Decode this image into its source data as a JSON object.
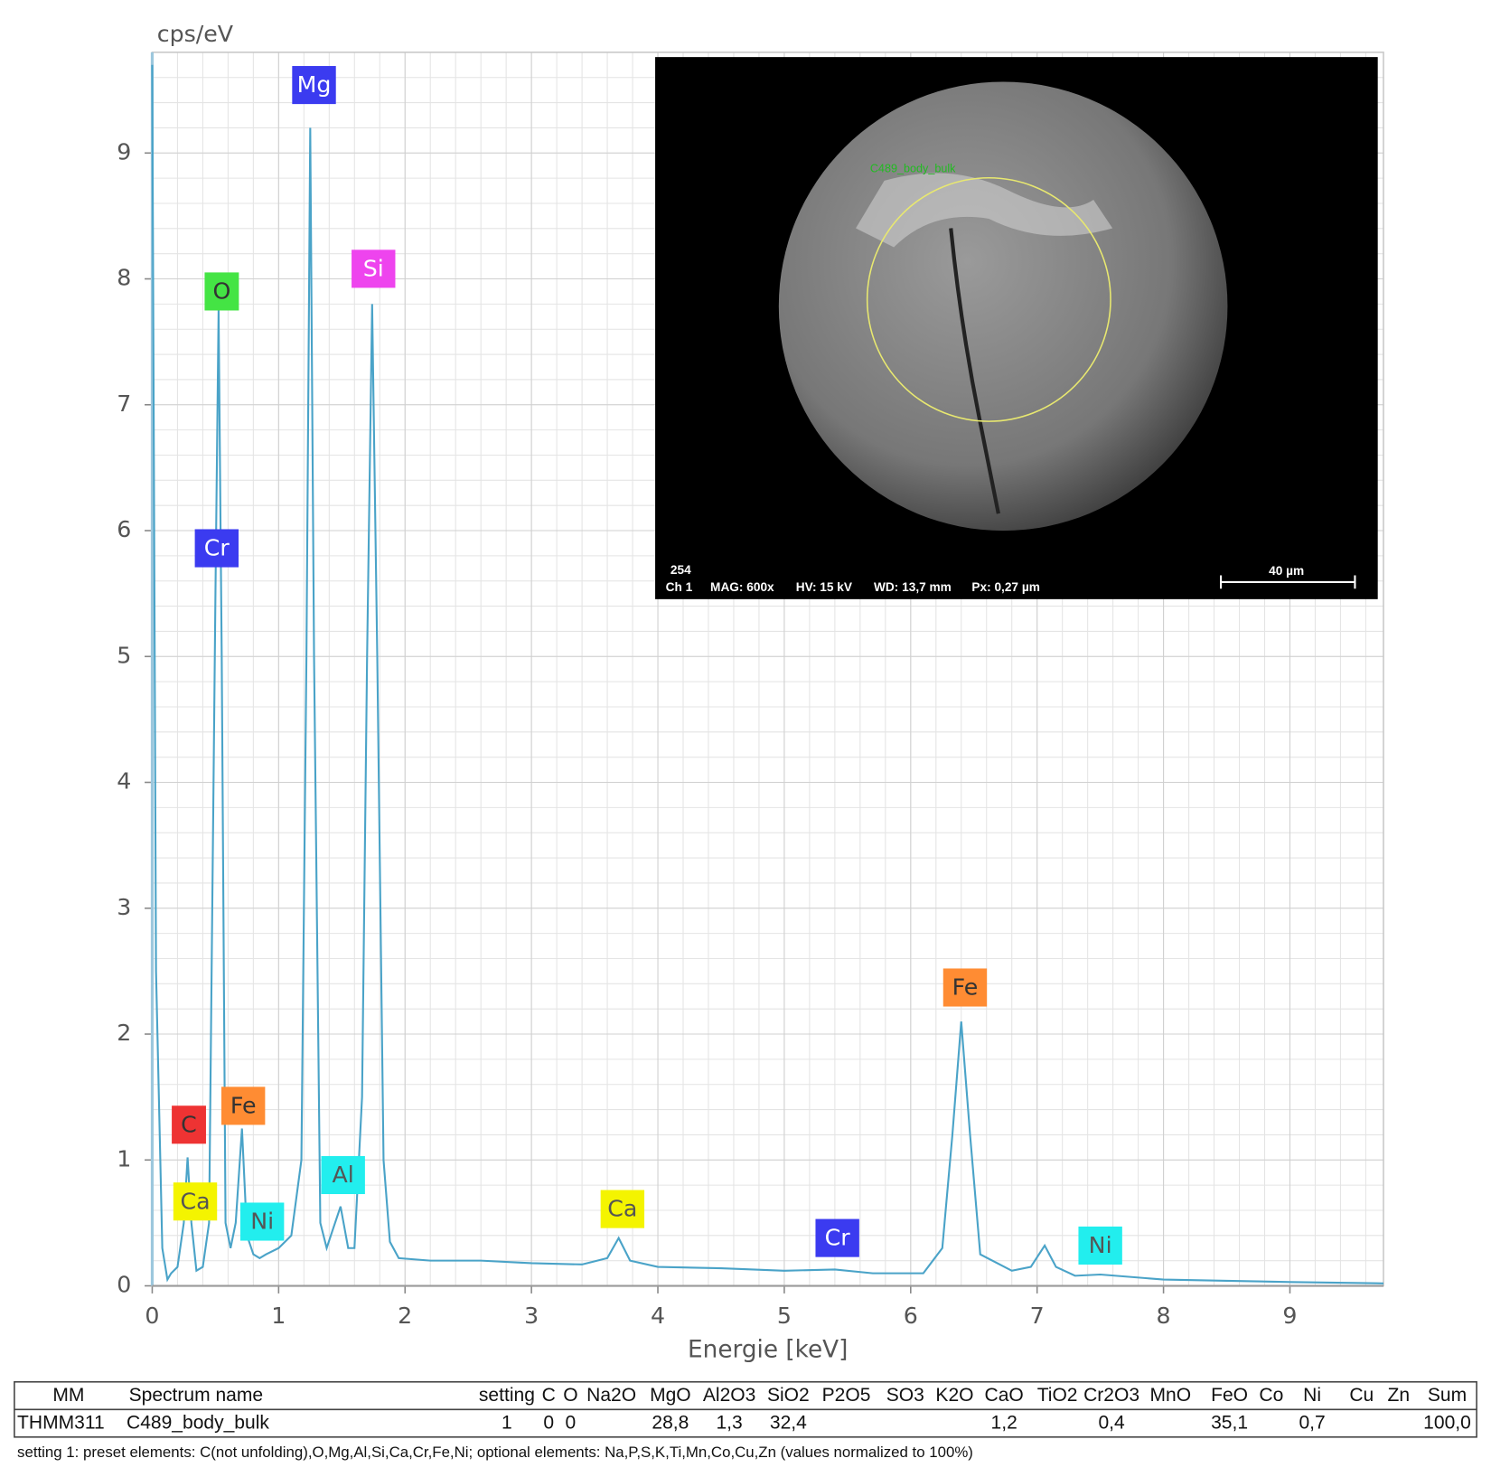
{
  "chart_data": {
    "type": "line",
    "y_label": "cps/eV",
    "x_label": "Energie [keV]",
    "xlim": [
      0,
      9.74
    ],
    "ylim": [
      0,
      9.8
    ],
    "xticks": [
      0,
      1,
      2,
      3,
      4,
      5,
      6,
      7,
      8,
      9
    ],
    "yticks": [
      0,
      1,
      2,
      3,
      4,
      5,
      6,
      7,
      8,
      9
    ],
    "grid": true,
    "color": "#4aa3c8",
    "x": [
      0,
      0.03,
      0.08,
      0.12,
      0.15,
      0.2,
      0.25,
      0.28,
      0.31,
      0.35,
      0.4,
      0.45,
      0.5,
      0.525,
      0.55,
      0.58,
      0.62,
      0.66,
      0.71,
      0.75,
      0.8,
      0.85,
      0.9,
      1.0,
      1.1,
      1.18,
      1.22,
      1.25,
      1.28,
      1.33,
      1.38,
      1.43,
      1.49,
      1.55,
      1.6,
      1.66,
      1.7,
      1.74,
      1.78,
      1.83,
      1.88,
      1.95,
      2.2,
      2.6,
      3.0,
      3.4,
      3.6,
      3.69,
      3.78,
      4.0,
      4.5,
      5.0,
      5.4,
      5.7,
      6.1,
      6.25,
      6.33,
      6.4,
      6.47,
      6.55,
      6.8,
      6.95,
      7.06,
      7.15,
      7.3,
      7.5,
      8.0,
      8.5,
      9.0,
      9.74
    ],
    "values": [
      9.7,
      2.5,
      0.3,
      0.05,
      0.1,
      0.15,
      0.5,
      1.02,
      0.5,
      0.12,
      0.15,
      0.5,
      5.5,
      7.75,
      5.0,
      0.5,
      0.3,
      0.5,
      1.25,
      0.4,
      0.25,
      0.22,
      0.25,
      0.3,
      0.4,
      1.0,
      5.0,
      9.2,
      5.0,
      0.5,
      0.3,
      0.45,
      0.63,
      0.3,
      0.3,
      1.5,
      5.0,
      7.8,
      5.0,
      1.0,
      0.35,
      0.22,
      0.2,
      0.2,
      0.18,
      0.17,
      0.22,
      0.38,
      0.2,
      0.15,
      0.14,
      0.12,
      0.13,
      0.1,
      0.1,
      0.3,
      1.2,
      2.1,
      1.2,
      0.25,
      0.12,
      0.15,
      0.32,
      0.15,
      0.08,
      0.09,
      0.05,
      0.04,
      0.03,
      0.02
    ],
    "annotations": [
      {
        "text": "Mg",
        "x": 1.28,
        "y": 9.54,
        "color": "#3b3bf0",
        "text_color": "#ffffff"
      },
      {
        "text": "O",
        "x": 0.55,
        "y": 7.9,
        "color": "#44e444",
        "text_color": "#333333"
      },
      {
        "text": "Si",
        "x": 1.75,
        "y": 8.08,
        "color": "#ee44ee",
        "text_color": "#ffffff"
      },
      {
        "text": "Cr",
        "x": 0.51,
        "y": 5.86,
        "color": "#3b3bf0",
        "text_color": "#ffffff"
      },
      {
        "text": "C",
        "x": 0.29,
        "y": 1.28,
        "color": "#ee3333",
        "text_color": "#333333"
      },
      {
        "text": "Fe",
        "x": 0.72,
        "y": 1.43,
        "color": "#ff8c33",
        "text_color": "#333333"
      },
      {
        "text": "Ca",
        "x": 0.34,
        "y": 0.67,
        "color": "#f4f400",
        "text_color": "#555555"
      },
      {
        "text": "Ni",
        "x": 0.87,
        "y": 0.51,
        "color": "#22eeee",
        "text_color": "#555555"
      },
      {
        "text": "Al",
        "x": 1.51,
        "y": 0.88,
        "color": "#22eeee",
        "text_color": "#555555"
      },
      {
        "text": "Ca",
        "x": 3.72,
        "y": 0.61,
        "color": "#f4f400",
        "text_color": "#555555"
      },
      {
        "text": "Cr",
        "x": 5.42,
        "y": 0.38,
        "color": "#3b3bf0",
        "text_color": "#ffffff"
      },
      {
        "text": "Fe",
        "x": 6.43,
        "y": 2.37,
        "color": "#ff8c33",
        "text_color": "#333333"
      },
      {
        "text": "Ni",
        "x": 7.5,
        "y": 0.32,
        "color": "#22eeee",
        "text_color": "#555555"
      }
    ]
  },
  "inset": {
    "region_label": "C489_body_bulk",
    "frame": "254",
    "channel": "Ch 1",
    "mag": "MAG: 600x",
    "hv": "HV: 15 kV",
    "wd": "WD: 13,7 mm",
    "px": "Px: 0,27 µm",
    "scale": "40 µm"
  },
  "table": {
    "header": [
      "MM",
      "Spectrum name",
      "setting",
      "C",
      "O",
      "Na2O",
      "MgO",
      "Al2O3",
      "SiO2",
      "P2O5",
      "SO3",
      "K2O",
      "CaO",
      "TiO2",
      "Cr2O3",
      "MnO",
      "FeO",
      "Co",
      "Ni",
      "Cu",
      "Zn",
      "Sum"
    ],
    "rows": [
      [
        "THMM311",
        "C489_body_bulk",
        "1",
        "0",
        "0",
        null,
        "28,8",
        "1,3",
        "32,4",
        null,
        null,
        null,
        "1,2",
        null,
        "0,4",
        null,
        "35,1",
        null,
        "0,7",
        null,
        null,
        "100,0"
      ]
    ]
  },
  "footnote": "setting 1: preset elements: C(not unfolding),O,Mg,Al,Si,Ca,Cr,Fe,Ni; optional elements: Na,P,S,K,Ti,Mn,Co,Cu,Zn (values normalized to 100%)"
}
